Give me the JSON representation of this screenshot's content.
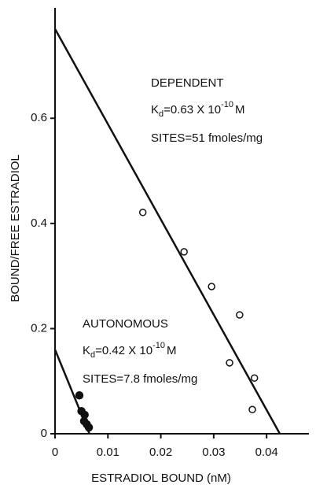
{
  "chart_data": {
    "type": "scatter",
    "x_label": "ESTRADIOL BOUND (nM)",
    "y_label": "BOUND/FREE ESTRADIOL",
    "xlim": [
      0,
      0.048
    ],
    "ylim": [
      0,
      0.81
    ],
    "xticks": [
      0,
      0.01,
      0.02,
      0.03,
      0.04
    ],
    "yticks": [
      0,
      0.2,
      0.4,
      0.6
    ],
    "color": "#111111",
    "series": [
      {
        "name": "DEPENDENT",
        "marker": "open",
        "kd_symbol": "K",
        "kd_sub": "d",
        "kd_text": "=0.63 X 10",
        "kd_exp": "-10",
        "kd_unit": "M",
        "sites": "SITES=51 fmoles/mg",
        "x": [
          0.0166,
          0.0244,
          0.0296,
          0.0349,
          0.033,
          0.0377,
          0.0373
        ],
        "values": [
          0.421,
          0.346,
          0.28,
          0.226,
          0.135,
          0.106,
          0.046
        ],
        "fit_x": [
          0,
          0.0425
        ],
        "fit_y": [
          0.77,
          0
        ]
      },
      {
        "name": "AUTONOMOUS",
        "marker": "filled",
        "kd_symbol": "K",
        "kd_sub": "d",
        "kd_text": "=0.42 X 10",
        "kd_exp": "-10",
        "kd_unit": "M",
        "sites": "SITES=7.8 fmoles/mg",
        "x": [
          0.0046,
          0.005,
          0.0056,
          0.0055,
          0.006,
          0.0064
        ],
        "values": [
          0.073,
          0.043,
          0.036,
          0.024,
          0.018,
          0.012
        ],
        "fit_x": [
          0,
          0.0065
        ],
        "fit_y": [
          0.16,
          0
        ]
      }
    ]
  }
}
